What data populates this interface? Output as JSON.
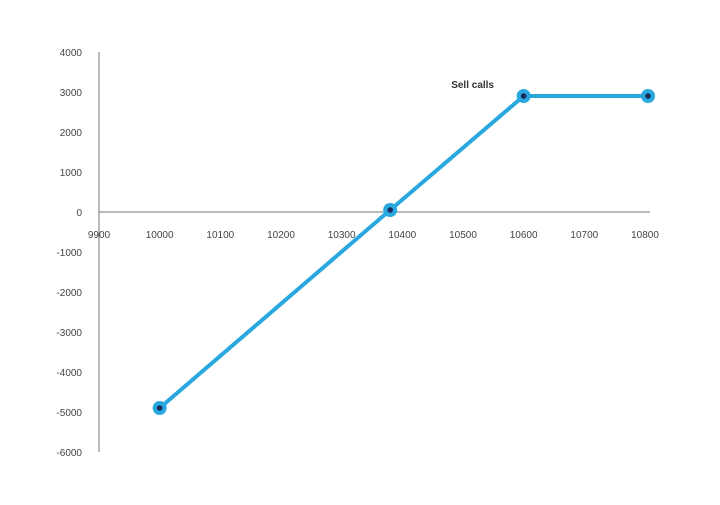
{
  "chart_data": {
    "type": "line",
    "title": "",
    "xlabel": "",
    "ylabel": "",
    "xlim": [
      9900,
      10800
    ],
    "ylim": [
      -6000,
      4000
    ],
    "x_ticks": [
      9900,
      10000,
      10100,
      10200,
      10300,
      10400,
      10500,
      10600,
      10700,
      10800
    ],
    "y_ticks": [
      4000,
      3000,
      2000,
      1000,
      0,
      -1000,
      -2000,
      -3000,
      -4000,
      -5000,
      -6000
    ],
    "grid": false,
    "series": [
      {
        "x": [
          10000,
          10380,
          10600,
          10805
        ],
        "y": [
          -4900,
          50,
          2900,
          2900
        ],
        "color": "#29a8e0",
        "marker_color": "#1b2a5c"
      }
    ],
    "annotations": [
      {
        "text": "Sell calls",
        "x": 10530,
        "y": 3200
      }
    ]
  }
}
